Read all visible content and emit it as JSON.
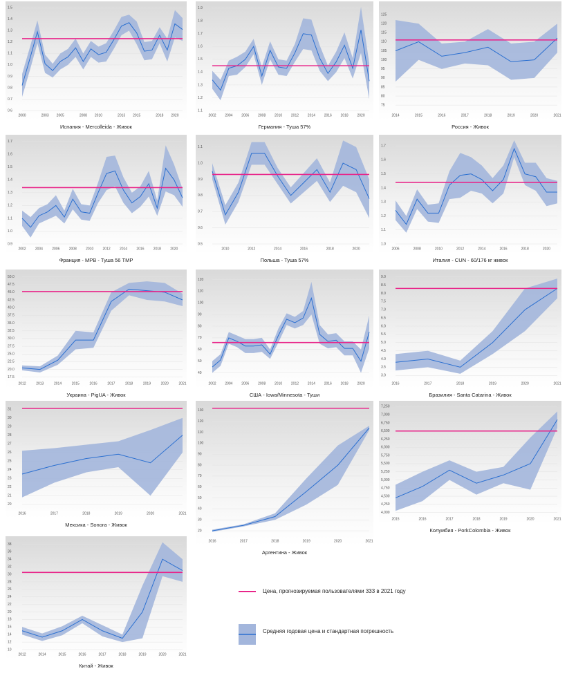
{
  "legend": [
    {
      "label": "Цена, прогнозируемая пользователями 333 в 2021 году",
      "color": "#e8268a"
    },
    {
      "label": "Средняя годовая цена и стандартная погрешность",
      "color": "#2a6fd0",
      "band_color": "#a3b6dc"
    }
  ],
  "chart_data": [
    {
      "type": "line",
      "title": "Испания - Mercolleida - Живок",
      "categories": [
        "2000",
        null,
        null,
        "2003",
        null,
        "2005",
        null,
        null,
        "2008",
        null,
        "2010",
        null,
        null,
        "2013",
        null,
        "2015",
        null,
        null,
        "2018",
        null,
        "2020",
        null
      ],
      "values": [
        0.82,
        1.05,
        1.29,
        1.01,
        0.95,
        1.03,
        1.07,
        1.15,
        1.03,
        1.14,
        1.09,
        1.11,
        1.22,
        1.34,
        1.37,
        1.28,
        1.12,
        1.13,
        1.26,
        1.13,
        1.36,
        1.31
      ],
      "errors": [
        0.1,
        0.1,
        0.1,
        0.08,
        0.06,
        0.07,
        0.07,
        0.08,
        0.07,
        0.07,
        0.07,
        0.08,
        0.08,
        0.08,
        0.07,
        0.1,
        0.08,
        0.08,
        0.07,
        0.1,
        0.12,
        0.1
      ],
      "forecast": 1.23,
      "ylim": [
        0.6,
        1.52
      ],
      "yticks": [
        0.6,
        0.7,
        0.8,
        0.9,
        {
          "value": 1.0,
          "label": "1.0"
        },
        1.1,
        1.2,
        1.3,
        1.4,
        1.5
      ]
    },
    {
      "type": "line",
      "title": "Германия - Туша 57%",
      "categories": [
        "2002",
        null,
        "2004",
        null,
        "2006",
        null,
        "2008",
        null,
        "2010",
        null,
        "2012",
        null,
        "2014",
        null,
        "2016",
        null,
        "2018",
        null,
        "2020",
        null
      ],
      "values": [
        1.34,
        1.26,
        1.43,
        1.45,
        1.5,
        1.6,
        1.37,
        1.57,
        1.44,
        1.43,
        1.55,
        1.7,
        1.69,
        1.51,
        1.39,
        1.48,
        1.61,
        1.43,
        1.73,
        1.33
      ],
      "errors": [
        0.07,
        0.08,
        0.06,
        0.07,
        0.06,
        0.06,
        0.07,
        0.07,
        0.06,
        0.06,
        0.07,
        0.12,
        0.12,
        0.1,
        0.06,
        0.08,
        0.1,
        0.08,
        0.18,
        0.14
      ],
      "forecast": 1.45,
      "ylim": [
        1.1,
        1.92
      ],
      "yticks": [
        1.1,
        1.2,
        1.3,
        1.4,
        1.5,
        1.6,
        1.7,
        1.8,
        1.9
      ]
    },
    {
      "type": "line",
      "title": "Россия - Живок",
      "categories": [
        "2014",
        "2015",
        "2016",
        "2017",
        "2018",
        "2019",
        "2020",
        "2021"
      ],
      "values": [
        105,
        110,
        102,
        104,
        107,
        99,
        100,
        112
      ],
      "errors": [
        17,
        10,
        7,
        6,
        10,
        10,
        10,
        8
      ],
      "forecast": 111,
      "ylim": [
        72,
        130
      ],
      "yticks": [
        75,
        80,
        85,
        90,
        95,
        100,
        105,
        110,
        115,
        120,
        125
      ]
    },
    {
      "type": "line",
      "title": "Франция - MPB - Туша 56 TMP",
      "categories": [
        "2002",
        null,
        "2004",
        null,
        "2006",
        null,
        "2008",
        null,
        "2010",
        null,
        "2012",
        null,
        "2014",
        null,
        "2016",
        null,
        "2018",
        null,
        "2020",
        null
      ],
      "values": [
        1.1,
        1.03,
        1.12,
        1.15,
        1.2,
        1.11,
        1.25,
        1.15,
        1.14,
        1.3,
        1.45,
        1.47,
        1.32,
        1.22,
        1.27,
        1.37,
        1.18,
        1.49,
        1.4,
        1.26
      ],
      "errors": [
        0.06,
        0.08,
        0.06,
        0.06,
        0.08,
        0.05,
        0.08,
        0.06,
        0.06,
        0.08,
        0.13,
        0.12,
        0.1,
        0.08,
        0.08,
        0.1,
        0.06,
        0.18,
        0.12,
        0.07
      ],
      "forecast": 1.34,
      "ylim": [
        0.9,
        1.72
      ],
      "yticks": [
        0.9,
        {
          "value": 1.0,
          "label": "1.0"
        },
        1.1,
        1.2,
        1.3,
        1.4,
        1.5,
        1.6,
        1.7
      ]
    },
    {
      "type": "line",
      "title": "Польша - Туша 57%",
      "categories": [
        null,
        "2010",
        null,
        "2012",
        null,
        "2014",
        null,
        "2016",
        null,
        "2018",
        null,
        "2020",
        null
      ],
      "values": [
        0.95,
        0.68,
        0.82,
        1.06,
        1.06,
        0.92,
        0.8,
        0.88,
        0.96,
        0.82,
        1.0,
        0.96,
        0.78
      ],
      "errors": [
        0.05,
        0.06,
        0.06,
        0.07,
        0.07,
        0.05,
        0.05,
        0.06,
        0.07,
        0.06,
        0.14,
        0.14,
        0.12
      ],
      "forecast": 0.93,
      "ylim": [
        0.5,
        1.15
      ],
      "yticks": [
        0.5,
        0.6,
        0.7,
        0.8,
        0.9,
        {
          "value": 1.0,
          "label": "1.0"
        },
        1.1
      ]
    },
    {
      "type": "line",
      "title": "Италия - CUN - 60/176 кг живок",
      "categories": [
        "2006",
        null,
        "2008",
        null,
        "2010",
        null,
        "2012",
        null,
        "2014",
        null,
        "2016",
        null,
        "2018",
        null,
        "2020",
        null
      ],
      "values": [
        1.24,
        1.14,
        1.32,
        1.22,
        1.22,
        1.42,
        1.49,
        1.5,
        1.46,
        1.38,
        1.46,
        1.68,
        1.5,
        1.48,
        1.37,
        1.37
      ],
      "errors": [
        0.07,
        0.06,
        0.07,
        0.06,
        0.07,
        0.1,
        0.16,
        0.12,
        0.1,
        0.09,
        0.1,
        0.06,
        0.08,
        0.1,
        0.1,
        0.08
      ],
      "forecast": 1.44,
      "ylim": [
        1.0,
        1.75
      ],
      "yticks": [
        {
          "value": 1.0,
          "label": "1.0"
        },
        1.1,
        1.2,
        1.3,
        1.4,
        1.5,
        1.6,
        1.7
      ]
    },
    {
      "type": "line",
      "title": "Украина - PigUA - Живок",
      "categories": [
        "2012",
        "2013",
        "2014",
        "2015",
        "2016",
        "2017",
        "2018",
        "2019",
        "2020",
        "2021"
      ],
      "values": [
        20.5,
        20,
        23,
        29.5,
        29.5,
        42,
        46,
        45.5,
        45,
        42.5
      ],
      "errors": [
        0.8,
        1,
        1.5,
        3,
        2.5,
        3,
        2,
        3,
        3,
        2
      ],
      "forecast": 45.2,
      "ylim": [
        17,
        51
      ],
      "yticks": [
        17.5,
        {
          "value": 20,
          "label": "20.0"
        },
        22.5,
        {
          "value": 25,
          "label": "25.0"
        },
        27.5,
        {
          "value": 30,
          "label": "30.0"
        },
        32.5,
        {
          "value": 35,
          "label": "35.0"
        },
        37.5,
        {
          "value": 40,
          "label": "40.0"
        },
        42.5,
        {
          "value": 45,
          "label": "45.0"
        },
        47.5,
        {
          "value": 50,
          "label": "50.0"
        }
      ]
    },
    {
      "type": "line",
      "title": "США - Iowa/Minnesota - Туши",
      "categories": [
        "2002",
        null,
        "2004",
        null,
        "2006",
        null,
        "2008",
        null,
        "2010",
        null,
        "2012",
        null,
        "2014",
        null,
        "2016",
        null,
        "2018",
        null,
        "2020",
        null
      ],
      "values": [
        45,
        51,
        70,
        67,
        63,
        63,
        64,
        56,
        72,
        86,
        83,
        87,
        104,
        73,
        67,
        68,
        61,
        61,
        50,
        75
      ],
      "errors": [
        5,
        5,
        5,
        5,
        6,
        6,
        6,
        4,
        6,
        5,
        5,
        6,
        14,
        8,
        6,
        6,
        6,
        6,
        10,
        14
      ],
      "forecast": 66,
      "ylim": [
        35,
        125
      ],
      "yticks": [
        40,
        50,
        60,
        70,
        80,
        90,
        100,
        110,
        120
      ]
    },
    {
      "type": "line",
      "title": "Бразилия - Santa Catarina - Живок",
      "categories": [
        "2016",
        "2017",
        "2018",
        "2019",
        "2020",
        "2021"
      ],
      "values": [
        3.8,
        4.0,
        3.5,
        5.0,
        7.0,
        8.3
      ],
      "errors": [
        0.5,
        0.5,
        0.4,
        0.7,
        1.3,
        0.6
      ],
      "forecast": 8.3,
      "ylim": [
        2.8,
        9.2
      ],
      "yticks": [
        {
          "value": 3,
          "label": "3.0"
        },
        3.5,
        {
          "value": 4,
          "label": "4.0"
        },
        4.5,
        {
          "value": 5,
          "label": "5.0"
        },
        5.5,
        {
          "value": 6,
          "label": "6.0"
        },
        6.5,
        {
          "value": 7,
          "label": "7.0"
        },
        7.5,
        {
          "value": 8,
          "label": "8.0"
        },
        8.5,
        {
          "value": 9,
          "label": "9.0"
        }
      ]
    },
    {
      "type": "line",
      "title": "Мексика - Sonora - Живок",
      "categories": [
        "2016",
        "2017",
        "2018",
        "2019",
        "2020",
        "2021"
      ],
      "values": [
        23.5,
        24.5,
        25.3,
        25.8,
        24.8,
        28
      ],
      "errors": [
        2.7,
        2,
        1.6,
        1.5,
        3.8,
        2
      ],
      "forecast": 31.1,
      "ylim": [
        19.5,
        31.5
      ],
      "yticks": [
        20,
        21,
        22,
        23,
        24,
        25,
        26,
        27,
        28,
        29,
        30,
        31
      ]
    },
    {
      "type": "line",
      "title": "Аргентина - Живок",
      "categories": [
        "2016",
        "2017",
        "2018",
        "2019",
        "2020",
        "2021"
      ],
      "values": [
        20,
        25,
        33,
        56,
        80,
        114
      ],
      "errors": [
        1,
        1,
        3,
        12,
        18,
        2
      ],
      "forecast": 132,
      "ylim": [
        15,
        135
      ],
      "yticks": [
        20,
        30,
        40,
        50,
        60,
        70,
        80,
        90,
        100,
        110,
        120,
        130
      ]
    },
    {
      "type": "line",
      "title": "Колумбия - PorkColombia - Живок",
      "categories": [
        "2015",
        "2016",
        "2017",
        "2018",
        "2019",
        "2020",
        "2021"
      ],
      "values": [
        4450,
        4800,
        5300,
        4900,
        5150,
        5500,
        6850
      ],
      "errors": [
        400,
        450,
        300,
        350,
        250,
        800,
        250
      ],
      "forecast": 6500,
      "ylim": [
        3950,
        7300
      ],
      "yticks": [
        {
          "value": 4000,
          "label": "4,000"
        },
        {
          "value": 4250,
          "label": "4,250"
        },
        {
          "value": 4500,
          "label": "4,500"
        },
        {
          "value": 4750,
          "label": "4,750"
        },
        {
          "value": 5000,
          "label": "5,000"
        },
        {
          "value": 5250,
          "label": "5,250"
        },
        {
          "value": 5500,
          "label": "5,500"
        },
        {
          "value": 5750,
          "label": "5,750"
        },
        {
          "value": 6000,
          "label": "6,000"
        },
        {
          "value": 6250,
          "label": "6,250"
        },
        {
          "value": 6500,
          "label": "6,500"
        },
        {
          "value": 6750,
          "label": "6,750"
        },
        {
          "value": 7000,
          "label": "7,000"
        },
        {
          "value": 7250,
          "label": "7,250"
        }
      ]
    },
    {
      "type": "line",
      "title": "Китай - Живок",
      "categories": [
        "2012",
        "2014",
        "2015",
        "2016",
        "2017",
        "2018",
        "2019",
        "2020",
        "2021"
      ],
      "values": [
        15,
        13.3,
        15,
        18,
        15,
        13,
        20,
        34,
        31
      ],
      "errors": [
        1,
        1,
        1.2,
        1,
        1.5,
        1,
        7,
        4.5,
        3
      ],
      "forecast": 30.5,
      "ylim": [
        10,
        39
      ],
      "yticks": [
        10,
        12,
        14,
        16,
        18,
        20,
        22,
        24,
        26,
        28,
        30,
        32,
        34,
        36,
        38
      ]
    }
  ]
}
